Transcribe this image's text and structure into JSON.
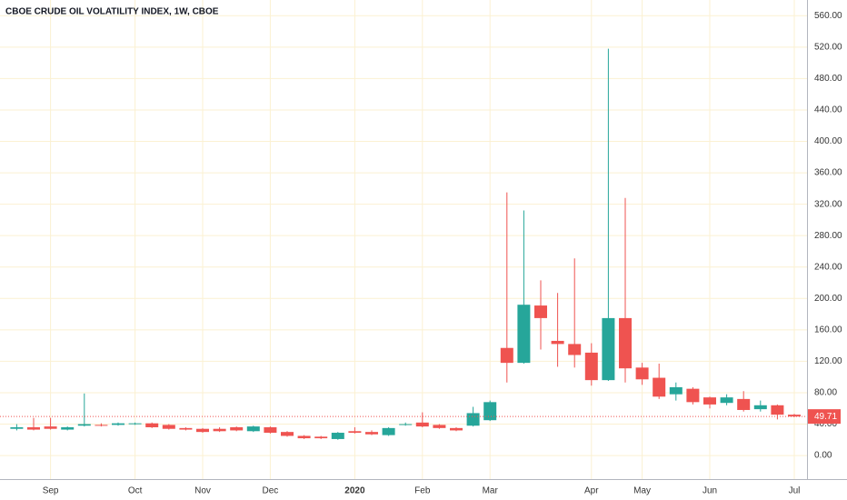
{
  "chart_data": {
    "type": "candlestick",
    "title": "CBOE CRUDE OIL VOLATILITY INDEX, 1W, CBOE",
    "categories": [
      null,
      null,
      "Sep",
      null,
      null,
      null,
      null,
      "Oct",
      null,
      null,
      null,
      "Nov",
      null,
      null,
      null,
      "Dec",
      null,
      null,
      null,
      null,
      "2020",
      null,
      null,
      null,
      "Feb",
      null,
      null,
      null,
      "Mar",
      null,
      null,
      null,
      null,
      null,
      "Apr",
      null,
      null,
      "May",
      null,
      null,
      null,
      "Jun",
      null,
      null,
      null,
      null,
      "Jul"
    ],
    "open": [
      34,
      36,
      37,
      33,
      38,
      39,
      39,
      40,
      41,
      39,
      35,
      34,
      34,
      36,
      31,
      36,
      30,
      25,
      24,
      21,
      31,
      30,
      26,
      39,
      42,
      39,
      35,
      38,
      45,
      137,
      118,
      191,
      146,
      142,
      131,
      96,
      175,
      112,
      99,
      78,
      85,
      74,
      67,
      72,
      59,
      64,
      52
    ],
    "high": [
      40,
      48,
      48,
      37,
      79,
      41,
      42,
      42,
      42,
      40,
      36,
      35,
      36,
      37,
      38,
      37,
      31,
      26,
      25,
      30,
      36,
      32,
      36,
      42,
      55,
      40,
      36,
      62,
      70,
      335,
      312,
      223,
      207,
      251,
      143,
      518,
      328,
      118,
      117,
      93,
      87,
      75,
      78,
      82,
      70,
      65,
      53
    ],
    "low": [
      32,
      32,
      33,
      32,
      37,
      37,
      38,
      39,
      35,
      33,
      32,
      29,
      30,
      31,
      30,
      28,
      24,
      21,
      21,
      20,
      28,
      26,
      25,
      38,
      36,
      34,
      31,
      37,
      44,
      93,
      117,
      135,
      113,
      112,
      89,
      95,
      93,
      90,
      72,
      70,
      65,
      60,
      64,
      56,
      56,
      46,
      49
    ],
    "close": [
      36,
      33,
      34,
      36,
      40,
      38,
      41,
      41,
      36,
      34,
      33,
      30,
      31,
      32,
      37,
      29,
      25,
      22,
      22,
      29,
      29,
      27,
      35,
      40,
      37,
      35,
      32,
      54,
      68,
      118,
      192,
      175,
      142,
      128,
      96,
      175,
      111,
      97,
      75,
      87,
      68,
      65,
      74,
      58,
      64,
      52,
      49.71
    ],
    "up_color": "#26a69a",
    "down_color": "#ef5350",
    "grid_color": "#fbf1d2",
    "ylim": [
      -30,
      580
    ],
    "yticks": [
      {
        "value": 0,
        "label": "0.00"
      },
      {
        "value": 40,
        "label": "40.00"
      },
      {
        "value": 80,
        "label": "80.00"
      },
      {
        "value": 120,
        "label": "120.00"
      },
      {
        "value": 160,
        "label": "160.00"
      },
      {
        "value": 200,
        "label": "200.00"
      },
      {
        "value": 240,
        "label": "240.00"
      },
      {
        "value": 280,
        "label": "280.00"
      },
      {
        "value": 320,
        "label": "320.00"
      },
      {
        "value": 360,
        "label": "360.00"
      },
      {
        "value": 400,
        "label": "400.00"
      },
      {
        "value": 440,
        "label": "440.00"
      },
      {
        "value": 480,
        "label": "480.00"
      },
      {
        "value": 520,
        "label": "520.00"
      },
      {
        "value": 560,
        "label": "560.00"
      }
    ],
    "grid": true
  }
}
